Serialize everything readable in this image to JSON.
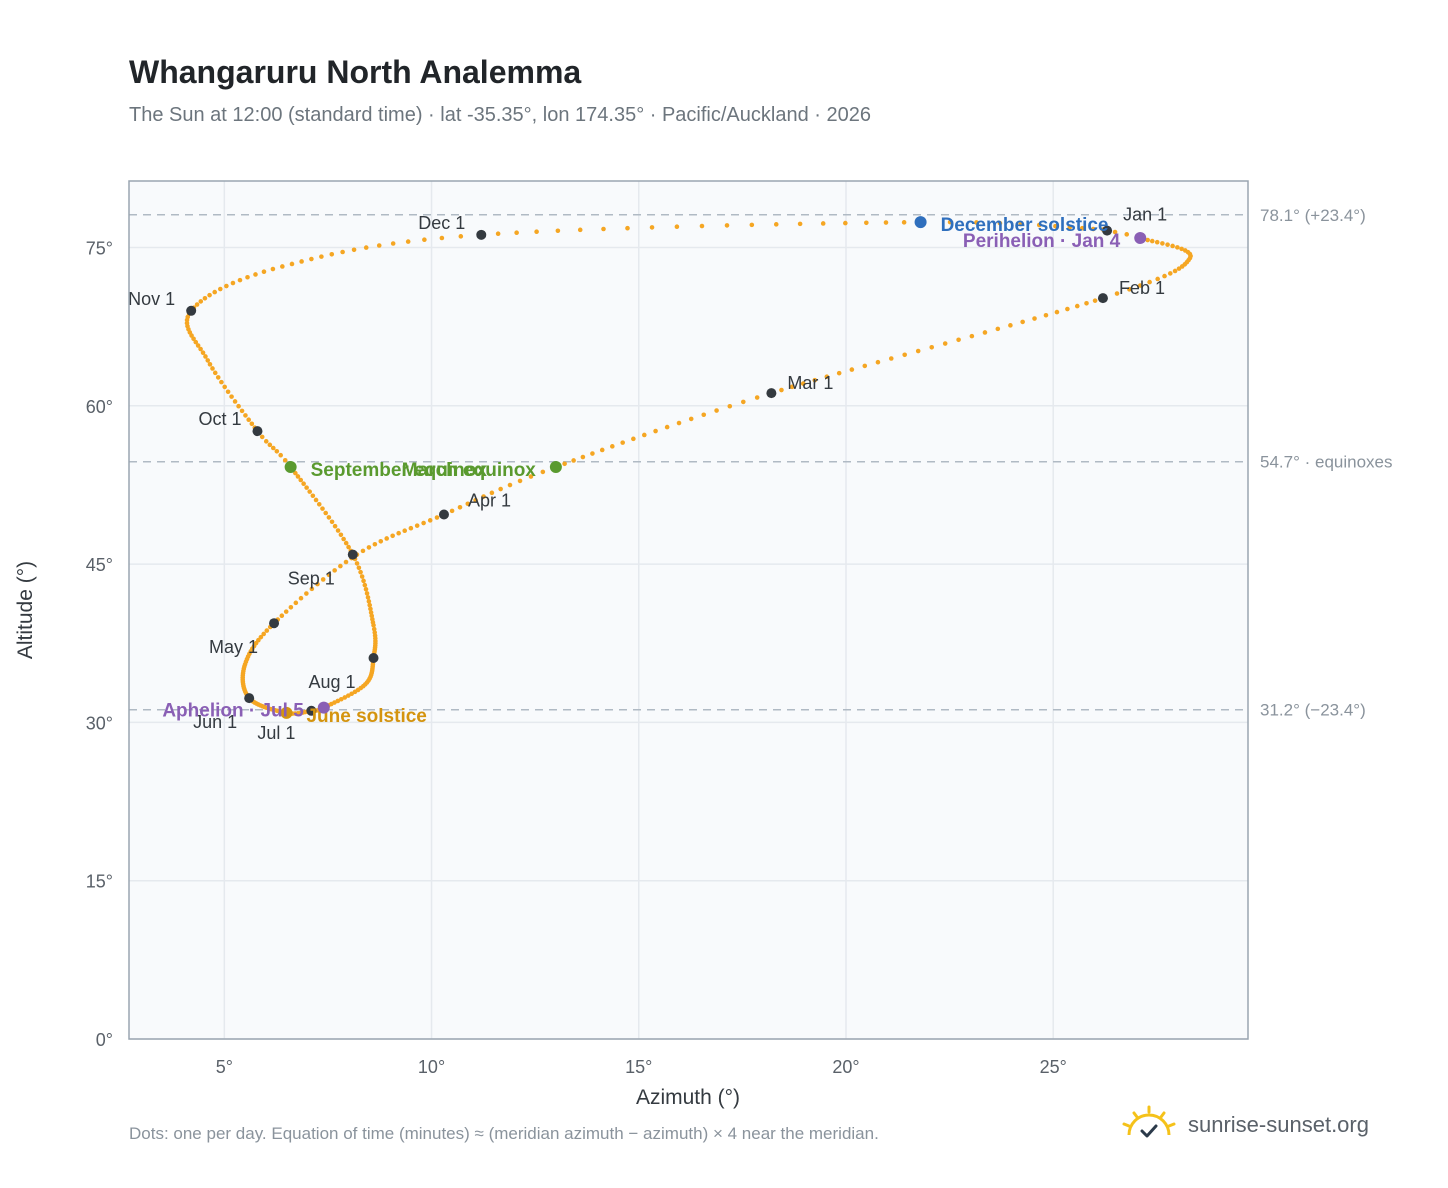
{
  "header": {
    "title": "Whangaruru North Analemma",
    "subtitle": "The Sun at 12:00 (standard time) · lat -35.35°, lon 174.35° · Pacific/Auckland · 2026"
  },
  "footer": {
    "note": "Dots: one per day. Equation of time (minutes) ≈ (meridian azimuth − azimuth) × 4 near the meridian.",
    "brand": "sunrise-sunset.org",
    "brand_icon": "sun-logo-icon"
  },
  "colors": {
    "path": "#f5a623",
    "month_dot": "#343a40",
    "equinox": "#5a9a2f",
    "december_solstice": "#2f6fbd",
    "june_solstice": "#d4940f",
    "perihelion_aphelion": "#8a5fb5",
    "ref_line": "#b0bac4",
    "plot_bg": "#f8fafc",
    "grid": "#e5e9ee",
    "frame": "#9aa5b1"
  },
  "chart_data": {
    "type": "scatter",
    "title": "Whangaruru North Analemma",
    "xlabel": "Azimuth (°)",
    "ylabel": "Altitude (°)",
    "xlim": [
      2.7,
      29.7
    ],
    "ylim": [
      0,
      81.3
    ],
    "x_ticks": [
      5,
      10,
      15,
      20,
      25
    ],
    "x_tick_labels": [
      "5°",
      "10°",
      "15°",
      "20°",
      "25°"
    ],
    "y_ticks": [
      0,
      15,
      30,
      45,
      60,
      75
    ],
    "y_tick_labels": [
      "0°",
      "15°",
      "30°",
      "45°",
      "60°",
      "75°"
    ],
    "grid": true,
    "analemma_key_points": [
      {
        "day": 1,
        "az": 26.3,
        "alt": 76.6
      },
      {
        "day": 4,
        "az": 27.1,
        "alt": 75.9
      },
      {
        "day": 18,
        "az": 28.3,
        "alt": 74.0
      },
      {
        "day": 32,
        "az": 26.2,
        "alt": 70.2
      },
      {
        "day": 60,
        "az": 18.2,
        "alt": 61.2
      },
      {
        "day": 79,
        "az": 13.0,
        "alt": 54.2
      },
      {
        "day": 91,
        "az": 10.3,
        "alt": 49.7
      },
      {
        "day": 105,
        "az": 8.2,
        "alt": 45.9
      },
      {
        "day": 121,
        "az": 6.2,
        "alt": 39.4
      },
      {
        "day": 135,
        "az": 5.5,
        "alt": 35.5
      },
      {
        "day": 152,
        "az": 5.6,
        "alt": 32.3
      },
      {
        "day": 172,
        "az": 6.5,
        "alt": 30.9
      },
      {
        "day": 182,
        "az": 7.1,
        "alt": 31.1
      },
      {
        "day": 186,
        "az": 7.4,
        "alt": 31.4
      },
      {
        "day": 200,
        "az": 8.4,
        "alt": 33.6
      },
      {
        "day": 213,
        "az": 8.6,
        "alt": 36.1
      },
      {
        "day": 226,
        "az": 8.6,
        "alt": 39.2
      },
      {
        "day": 244,
        "az": 8.1,
        "alt": 45.9
      },
      {
        "day": 266,
        "az": 6.6,
        "alt": 54.2
      },
      {
        "day": 274,
        "az": 5.8,
        "alt": 57.6
      },
      {
        "day": 290,
        "az": 4.6,
        "alt": 64.3
      },
      {
        "day": 305,
        "az": 4.2,
        "alt": 69.0
      },
      {
        "day": 320,
        "az": 6.4,
        "alt": 73.2
      },
      {
        "day": 335,
        "az": 11.2,
        "alt": 76.2
      },
      {
        "day": 355,
        "az": 21.8,
        "alt": 77.4
      },
      {
        "day": 365,
        "az": 26.2,
        "alt": 76.7
      }
    ],
    "month_markers": [
      {
        "label": "Jan 1",
        "az": 26.3,
        "alt": 76.6
      },
      {
        "label": "Feb 1",
        "az": 26.2,
        "alt": 70.2
      },
      {
        "label": "Mar 1",
        "az": 18.2,
        "alt": 61.2
      },
      {
        "label": "Apr 1",
        "az": 10.3,
        "alt": 49.7
      },
      {
        "label": "May 1",
        "az": 6.2,
        "alt": 39.4
      },
      {
        "label": "Jun 1",
        "az": 5.6,
        "alt": 32.3
      },
      {
        "label": "Jul 1",
        "az": 7.1,
        "alt": 31.1
      },
      {
        "label": "Aug 1",
        "az": 8.6,
        "alt": 36.1
      },
      {
        "label": "Sep 1",
        "az": 8.1,
        "alt": 45.9
      },
      {
        "label": "Oct 1",
        "az": 5.8,
        "alt": 57.6
      },
      {
        "label": "Nov 1",
        "az": 4.2,
        "alt": 69.0
      },
      {
        "label": "Dec 1",
        "az": 11.2,
        "alt": 76.2
      }
    ],
    "events": [
      {
        "label": "December solstice",
        "az": 21.8,
        "alt": 77.4,
        "kind": "december_solstice"
      },
      {
        "label": "Perihelion · Jan 4",
        "az": 27.1,
        "alt": 75.9,
        "kind": "perihelion_aphelion"
      },
      {
        "label": "March equinox",
        "az": 13.0,
        "alt": 54.2,
        "kind": "equinox"
      },
      {
        "label": "September equinox",
        "az": 6.6,
        "alt": 54.2,
        "kind": "equinox"
      },
      {
        "label": "June solstice",
        "az": 6.5,
        "alt": 30.9,
        "kind": "june_solstice"
      },
      {
        "label": "Aphelion · Jul 5",
        "az": 7.4,
        "alt": 31.4,
        "kind": "perihelion_aphelion"
      }
    ],
    "reference_lines": [
      {
        "alt": 78.1,
        "label": "78.1° (+23.4°)"
      },
      {
        "alt": 54.7,
        "label": "54.7° · equinoxes"
      },
      {
        "alt": 31.2,
        "label": "31.2° (−23.4°)"
      }
    ]
  }
}
